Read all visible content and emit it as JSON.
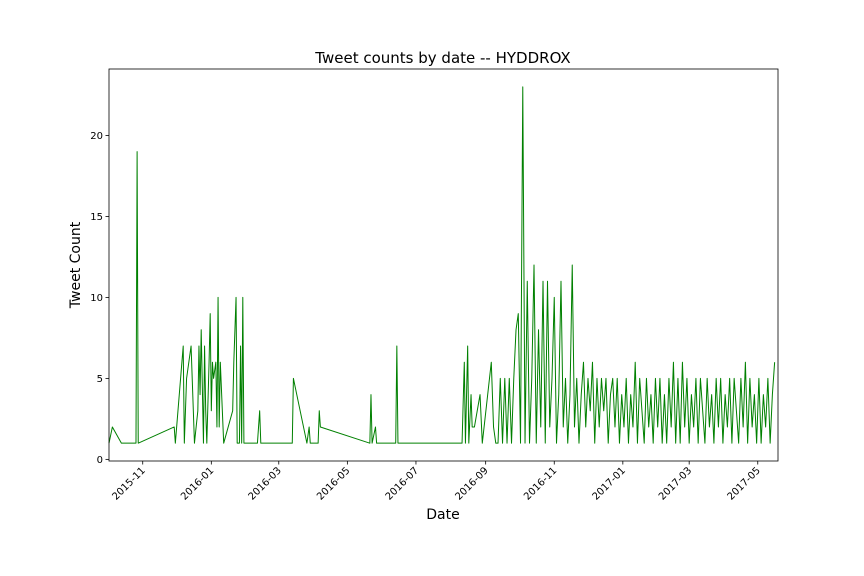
{
  "chart_data": {
    "type": "line",
    "title": "Tweet counts by date -- HYDDROX",
    "x_label": "Date",
    "y_label": "Tweet Count",
    "x": [
      "2015-10-02",
      "2015-10-05",
      "2015-10-13",
      "2015-10-26",
      "2015-10-27",
      "2015-10-28",
      "2015-11-29",
      "2015-11-30",
      "2015-12-07",
      "2015-12-08",
      "2015-12-10",
      "2015-12-14",
      "2015-12-17",
      "2015-12-20",
      "2015-12-21",
      "2015-12-22",
      "2015-12-23",
      "2015-12-25",
      "2015-12-26",
      "2015-12-27",
      "2015-12-28",
      "2015-12-30",
      "2015-12-31",
      "2016-01-01",
      "2016-01-02",
      "2016-01-03",
      "2016-01-05",
      "2016-01-06",
      "2016-01-07",
      "2016-01-08",
      "2016-01-09",
      "2016-01-12",
      "2016-01-20",
      "2016-01-21",
      "2016-01-23",
      "2016-01-24",
      "2016-01-26",
      "2016-01-27",
      "2016-01-28",
      "2016-01-29",
      "2016-01-30",
      "2016-02-11",
      "2016-02-13",
      "2016-02-14",
      "2016-02-15",
      "2016-02-21",
      "2016-02-22",
      "2016-02-24",
      "2016-03-13",
      "2016-03-14",
      "2016-03-26",
      "2016-03-28",
      "2016-03-29",
      "2016-04-05",
      "2016-04-06",
      "2016-04-07",
      "2016-05-21",
      "2016-05-22",
      "2016-05-23",
      "2016-05-26",
      "2016-05-27",
      "2016-06-13",
      "2016-06-14",
      "2016-06-15",
      "2016-08-11",
      "2016-08-13",
      "2016-08-14",
      "2016-08-16",
      "2016-08-17",
      "2016-08-19",
      "2016-08-20",
      "2016-08-22",
      "2016-08-27",
      "2016-08-29",
      "2016-09-06",
      "2016-09-08",
      "2016-09-10",
      "2016-09-12",
      "2016-09-14",
      "2016-09-16",
      "2016-09-18",
      "2016-09-20",
      "2016-09-22",
      "2016-09-24",
      "2016-09-26",
      "2016-09-28",
      "2016-09-30",
      "2016-10-02",
      "2016-10-04",
      "2016-10-06",
      "2016-10-08",
      "2016-10-10",
      "2016-10-12",
      "2016-10-14",
      "2016-10-16",
      "2016-10-18",
      "2016-10-20",
      "2016-10-22",
      "2016-10-24",
      "2016-10-26",
      "2016-10-28",
      "2016-10-30",
      "2016-11-01",
      "2016-11-03",
      "2016-11-05",
      "2016-11-07",
      "2016-11-09",
      "2016-11-11",
      "2016-11-13",
      "2016-11-15",
      "2016-11-17",
      "2016-11-19",
      "2016-11-21",
      "2016-11-23",
      "2016-11-25",
      "2016-11-27",
      "2016-11-29",
      "2016-12-01",
      "2016-12-03",
      "2016-12-05",
      "2016-12-07",
      "2016-12-09",
      "2016-12-11",
      "2016-12-13",
      "2016-12-15",
      "2016-12-17",
      "2016-12-19",
      "2016-12-21",
      "2016-12-23",
      "2016-12-25",
      "2016-12-27",
      "2016-12-29",
      "2016-12-31",
      "2017-01-02",
      "2017-01-04",
      "2017-01-06",
      "2017-01-08",
      "2017-01-10",
      "2017-01-12",
      "2017-01-14",
      "2017-01-16",
      "2017-01-18",
      "2017-01-20",
      "2017-01-22",
      "2017-01-24",
      "2017-01-26",
      "2017-01-28",
      "2017-01-30",
      "2017-02-01",
      "2017-02-03",
      "2017-02-05",
      "2017-02-07",
      "2017-02-09",
      "2017-02-11",
      "2017-02-13",
      "2017-02-15",
      "2017-02-17",
      "2017-02-19",
      "2017-02-21",
      "2017-02-23",
      "2017-02-25",
      "2017-02-27",
      "2017-03-01",
      "2017-03-03",
      "2017-03-05",
      "2017-03-07",
      "2017-03-09",
      "2017-03-11",
      "2017-03-13",
      "2017-03-15",
      "2017-03-17",
      "2017-03-19",
      "2017-03-21",
      "2017-03-23",
      "2017-03-25",
      "2017-03-27",
      "2017-03-29",
      "2017-03-31",
      "2017-04-02",
      "2017-04-04",
      "2017-04-06",
      "2017-04-08",
      "2017-04-10",
      "2017-04-12",
      "2017-04-14",
      "2017-04-16",
      "2017-04-18",
      "2017-04-20",
      "2017-04-22",
      "2017-04-24",
      "2017-04-26",
      "2017-04-28",
      "2017-04-30",
      "2017-05-02",
      "2017-05-04",
      "2017-05-06",
      "2017-05-08",
      "2017-05-10",
      "2017-05-12",
      "2017-05-14",
      "2017-05-16"
    ],
    "series": [
      {
        "name": "Tweet Count",
        "color": "#008000",
        "values": [
          1,
          2,
          1,
          1,
          19,
          1,
          2,
          1,
          7,
          1,
          5,
          7,
          1,
          3,
          7,
          4,
          8,
          1,
          7,
          3,
          1,
          6,
          9,
          3,
          6,
          5,
          6,
          2,
          10,
          2,
          6,
          1,
          3,
          6,
          10,
          1,
          1,
          7,
          1,
          10,
          1,
          1,
          3,
          1,
          1,
          1,
          1,
          1,
          1,
          5,
          1,
          2,
          1,
          1,
          3,
          2,
          1,
          4,
          1,
          2,
          1,
          1,
          7,
          1,
          1,
          6,
          1,
          7,
          1,
          4,
          2,
          2,
          4,
          1,
          6,
          2,
          1,
          1,
          5,
          1,
          5,
          1,
          5,
          1,
          5,
          8,
          9,
          1,
          23,
          1,
          11,
          1,
          5,
          12,
          1,
          8,
          2,
          11,
          1,
          11,
          2,
          5,
          10,
          1,
          4,
          11,
          2,
          5,
          1,
          4,
          12,
          2,
          5,
          1,
          4,
          6,
          2,
          5,
          3,
          6,
          1,
          5,
          2,
          5,
          3,
          5,
          1,
          4,
          5,
          2,
          5,
          1,
          4,
          2,
          5,
          1,
          4,
          2,
          6,
          1,
          5,
          3,
          1,
          5,
          2,
          4,
          1,
          5,
          2,
          5,
          1,
          4,
          1,
          5,
          2,
          6,
          1,
          5,
          1,
          6,
          2,
          5,
          1,
          4,
          2,
          5,
          1,
          5,
          3,
          1,
          5,
          2,
          4,
          1,
          5,
          2,
          5,
          1,
          4,
          2,
          5,
          1,
          5,
          3,
          1,
          5,
          2,
          6,
          1,
          5,
          2,
          4,
          1,
          5,
          1,
          4,
          2,
          5,
          1,
          4,
          6
        ]
      }
    ],
    "xlim": [
      "2015-10-02",
      "2017-05-19"
    ],
    "ylim": [
      -0.1,
      24.1
    ],
    "xticks": [
      "2015-11",
      "2016-01",
      "2016-03",
      "2016-05",
      "2016-07",
      "2016-09",
      "2016-11",
      "2017-01",
      "2017-03",
      "2017-05"
    ],
    "yticks": [
      0,
      5,
      10,
      15,
      20
    ]
  }
}
